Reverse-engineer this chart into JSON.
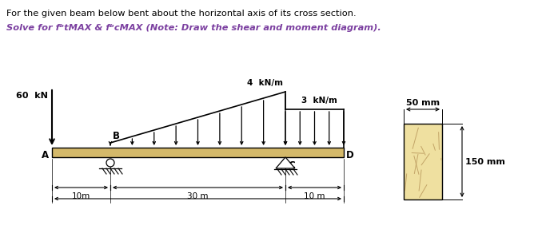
{
  "title_line1": "For the given beam below bent about the horizontal axis of its cross section.",
  "title_line2": "Solve for fᵇtMAX & fᵇcMAX (Note: Draw the shear and moment diagram).",
  "title1_color": "#000000",
  "title2_color": "#7B3FA0",
  "beam_color": "#D4B96A",
  "bg_color": "#ffffff",
  "force_label": "60  kN",
  "load4_label": "4  kN/m",
  "load3_label": "3  kN/m",
  "dim_10m_left": "10m",
  "dim_30m": "30 m",
  "dim_10m_right": "10 m",
  "cs_width_label": "50 mm",
  "cs_height_label": "150 mm"
}
